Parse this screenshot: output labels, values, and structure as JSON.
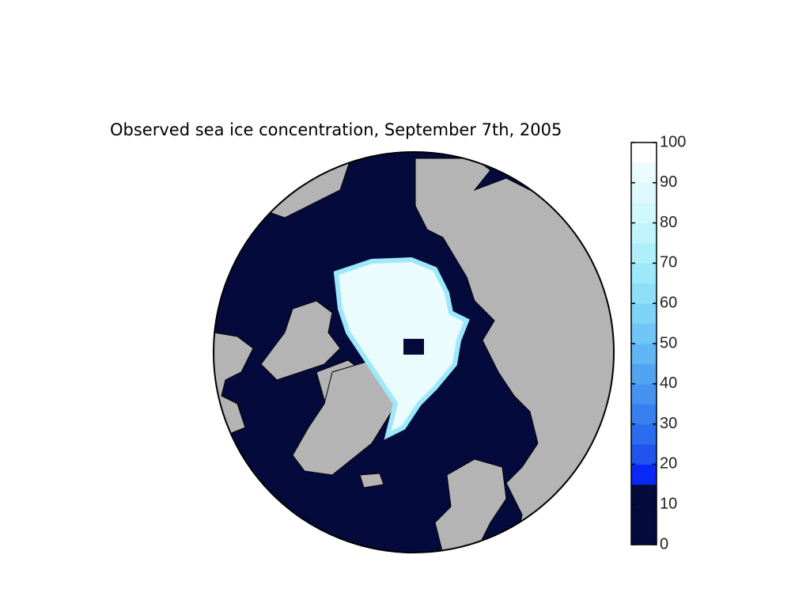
{
  "title": "Observed sea ice concentration, September 7th, 2005",
  "colorbar": {
    "lim": [
      0,
      100
    ],
    "ticks": [
      0,
      10,
      20,
      30,
      40,
      50,
      60,
      70,
      80,
      90,
      100
    ],
    "colors": [
      "#050a3c",
      "#050a3c",
      "#050a3c",
      "#0a28f5",
      "#1f55ee",
      "#2c6cee",
      "#3880ef",
      "#4592f0",
      "#52a4f2",
      "#60b6f4",
      "#6ec5f6",
      "#7dd3f8",
      "#8ddff9",
      "#9de8fa",
      "#aeeffb",
      "#bff4fc",
      "#cff8fd",
      "#def9fd",
      "#ecfcfe",
      "#ffffff"
    ]
  }
}
